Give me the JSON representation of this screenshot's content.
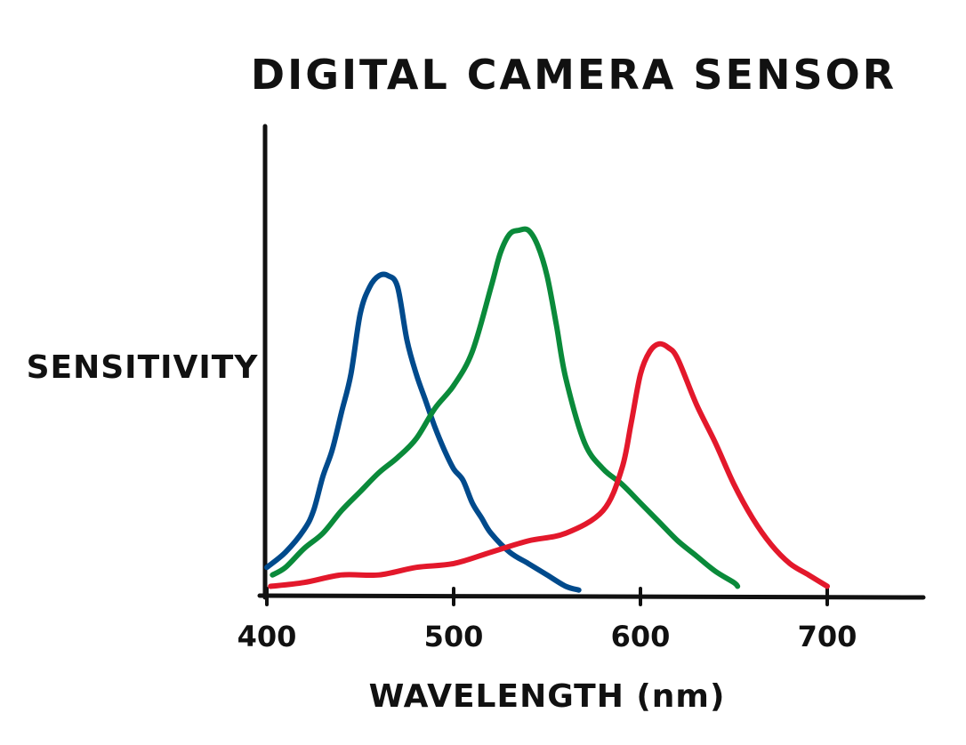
{
  "chart_data": {
    "type": "line",
    "title": "DIGITAL CAMERA SENSOR",
    "xlabel": "WAVELENGTH (nm)",
    "ylabel": "SENSITIVITY",
    "xlim": [
      400,
      750
    ],
    "ylim": [
      0,
      1.0
    ],
    "xticks": [
      400,
      500,
      600,
      700
    ],
    "grid": false,
    "legend": "none",
    "series": [
      {
        "color": "#004a8c",
        "x": [
          400,
          410,
          420,
          425,
          430,
          435,
          440,
          445,
          450,
          455,
          460,
          465,
          470,
          475,
          480,
          485,
          490,
          495,
          500,
          505,
          510,
          515,
          520,
          530,
          540,
          550,
          560,
          567
        ],
        "y": [
          0.07,
          0.11,
          0.17,
          0.22,
          0.31,
          0.38,
          0.48,
          0.58,
          0.74,
          0.81,
          0.84,
          0.84,
          0.81,
          0.67,
          0.58,
          0.51,
          0.44,
          0.38,
          0.33,
          0.3,
          0.24,
          0.2,
          0.16,
          0.11,
          0.08,
          0.05,
          0.02,
          0.01
        ]
      },
      {
        "color": "#0a8a3a",
        "x": [
          403,
          410,
          420,
          430,
          440,
          450,
          460,
          470,
          480,
          490,
          500,
          510,
          520,
          525,
          530,
          535,
          540,
          545,
          550,
          555,
          560,
          570,
          580,
          590,
          600,
          610,
          620,
          630,
          640,
          650,
          652
        ],
        "y": [
          0.05,
          0.07,
          0.12,
          0.16,
          0.22,
          0.27,
          0.32,
          0.36,
          0.41,
          0.49,
          0.55,
          0.64,
          0.81,
          0.9,
          0.95,
          0.96,
          0.96,
          0.92,
          0.84,
          0.71,
          0.57,
          0.4,
          0.33,
          0.29,
          0.24,
          0.19,
          0.14,
          0.1,
          0.06,
          0.03,
          0.02
        ]
      },
      {
        "color": "#e3182b",
        "x": [
          402,
          420,
          440,
          460,
          480,
          500,
          520,
          540,
          560,
          580,
          590,
          595,
          600,
          605,
          610,
          615,
          620,
          630,
          640,
          650,
          660,
          670,
          680,
          690,
          700
        ],
        "y": [
          0.02,
          0.03,
          0.05,
          0.05,
          0.07,
          0.08,
          0.11,
          0.14,
          0.16,
          0.22,
          0.33,
          0.45,
          0.58,
          0.64,
          0.66,
          0.65,
          0.62,
          0.5,
          0.4,
          0.29,
          0.2,
          0.13,
          0.08,
          0.05,
          0.02
        ]
      }
    ]
  }
}
